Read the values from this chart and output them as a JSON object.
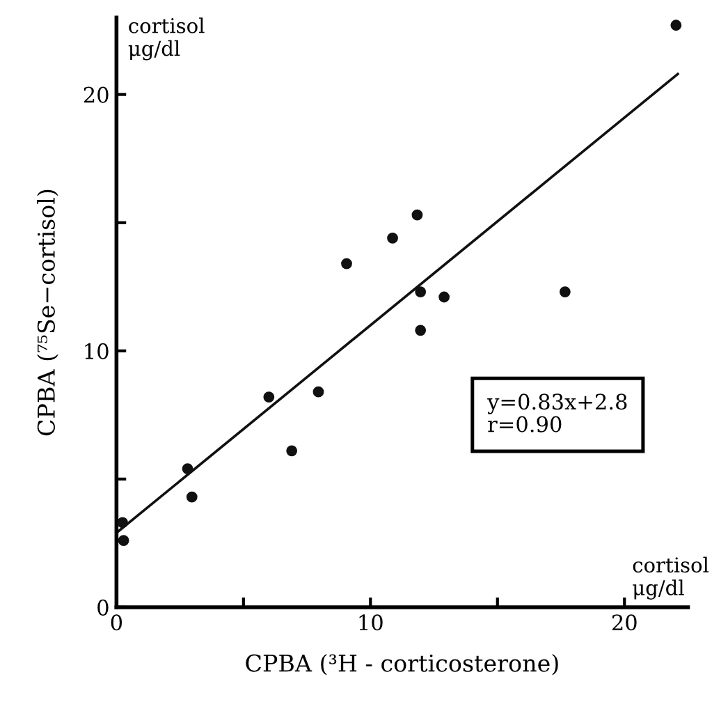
{
  "chart_data": {
    "type": "scatter",
    "xlabel": "CPBA (³H - corticosterone)",
    "ylabel": "CPBA (⁷⁵Se−cortisol)",
    "xlim": [
      0,
      22.5
    ],
    "ylim": [
      0,
      23
    ],
    "xticks": [
      0,
      {
        "value": 5,
        "label": null
      },
      10,
      {
        "value": 15,
        "label": null
      },
      20
    ],
    "yticks": [
      0,
      {
        "value": 5,
        "label": null
      },
      10,
      {
        "value": 15,
        "label": null
      },
      20
    ],
    "grid": false,
    "legend": false,
    "series": [
      {
        "marker": "circle",
        "color": "#111111",
        "x": [
          0.24,
          0.28,
          2.8,
          2.97,
          6.0,
          6.9,
          7.95,
          9.06,
          10.87,
          11.84,
          11.97,
          11.97,
          12.9,
          17.66,
          22.03
        ],
        "values": [
          3.3,
          2.6,
          5.4,
          4.3,
          8.2,
          6.1,
          8.4,
          13.4,
          14.4,
          15.3,
          12.3,
          10.8,
          12.1,
          12.3,
          22.7
        ]
      },
      {
        "type": "line",
        "color": "#111111",
        "x": [
          0,
          22.1
        ],
        "values": [
          2.9,
          20.8
        ]
      }
    ],
    "annotations": [
      "cortisol\nμg/dl",
      "cortisol\nμg/dl",
      "y=0.83x+2.8\nr=0.90"
    ]
  }
}
